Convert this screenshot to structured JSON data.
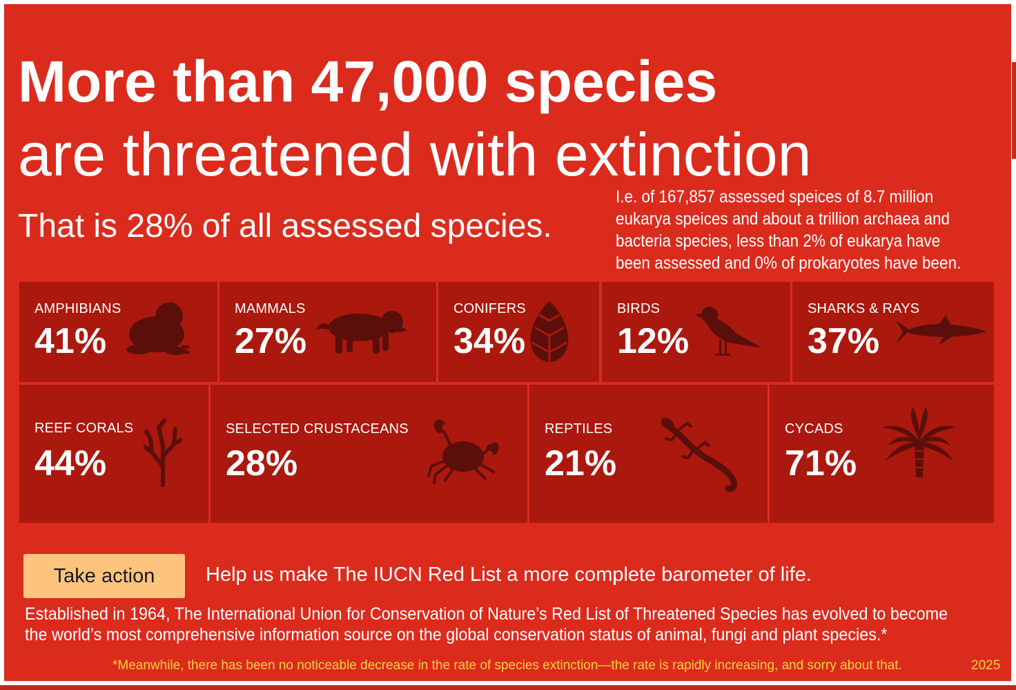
{
  "headline": {
    "line1": "More than 47,000 species",
    "line2": "are threatened with extinction"
  },
  "subhead": "That is 28% of all assessed species.",
  "note": "I.e. of 167,857 assessed speices of 8.7 million eukarya speices and about a trillion archaea and bacteria species, less than 2% of eukarya have been assessed and 0% of prokaryotes have been.",
  "groups": [
    {
      "label": "AMPHIBIANS",
      "percent": "41%",
      "icon": "frog-icon"
    },
    {
      "label": "MAMMALS",
      "percent": "27%",
      "icon": "tiger-icon"
    },
    {
      "label": "CONIFERS",
      "percent": "34%",
      "icon": "pinecone-icon"
    },
    {
      "label": "BIRDS",
      "percent": "12%",
      "icon": "bird-icon"
    },
    {
      "label": "SHARKS & RAYS",
      "percent": "37%",
      "icon": "shark-icon"
    },
    {
      "label": "REEF CORALS",
      "percent": "44%",
      "icon": "coral-icon"
    },
    {
      "label": "SELECTED CRUSTACEANS",
      "percent": "28%",
      "icon": "crab-icon"
    },
    {
      "label": "REPTILES",
      "percent": "21%",
      "icon": "lizard-icon"
    },
    {
      "label": "CYCADS",
      "percent": "71%",
      "icon": "palm-icon"
    }
  ],
  "cta": {
    "button_label": "Take action",
    "text": "Help us make The IUCN Red List a more complete barometer of life."
  },
  "about": "Established in 1964, The International Union for Conservation of Nature’s Red List of Threatened Species has evolved to become the world’s most comprehensive information source on the global conservation status of animal, fungi and plant species.*",
  "footnote": "*Meanwhile, there has been no noticeable decrease in the rate of species extinction—the rate is rapidly increasing, and sorry about that.",
  "year": "2025",
  "colors": {
    "background": "#db2b1d",
    "tile": "#ab180e",
    "icon": "#5a0f0a",
    "button": "#fec47e",
    "footnote": "#f4d63a"
  }
}
